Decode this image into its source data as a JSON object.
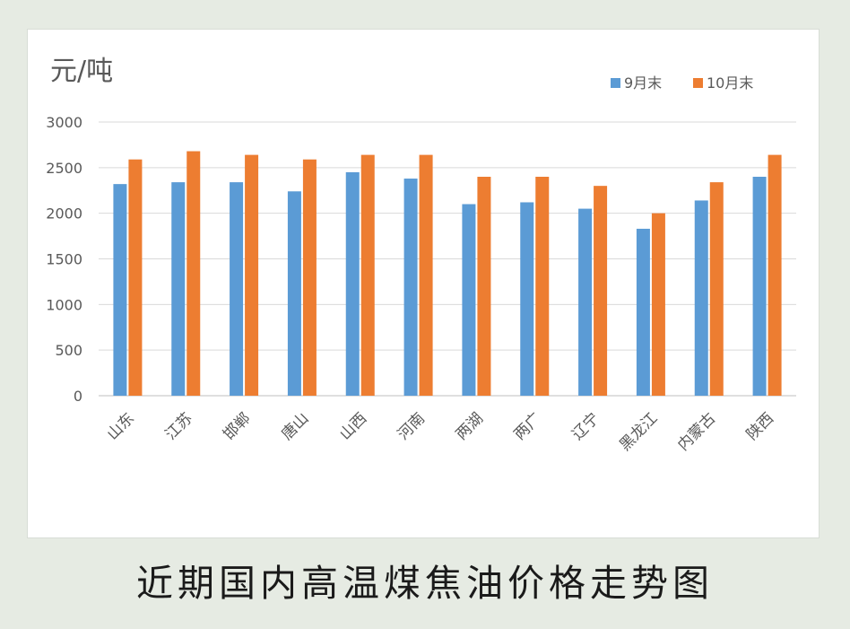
{
  "caption": "近期国内高温煤焦油价格走势图",
  "chart_data": {
    "type": "bar",
    "title": "",
    "ylabel": "元/吨",
    "xlabel": "",
    "ylim": [
      0,
      3000
    ],
    "yticks": [
      0,
      500,
      1000,
      1500,
      2000,
      2500,
      3000
    ],
    "grid": true,
    "legend_position": "top-right",
    "categories": [
      "山东",
      "江苏",
      "邯郸",
      "唐山",
      "山西",
      "河南",
      "两湖",
      "两广",
      "辽宁",
      "黑龙江",
      "内蒙古",
      "陕西"
    ],
    "series": [
      {
        "name": "9月末",
        "color": "#5b9bd5",
        "values": [
          2320,
          2340,
          2340,
          2240,
          2450,
          2380,
          2100,
          2120,
          2050,
          1830,
          2140,
          2400
        ]
      },
      {
        "name": "10月末",
        "color": "#ed7d31",
        "values": [
          2590,
          2680,
          2640,
          2590,
          2640,
          2640,
          2400,
          2400,
          2300,
          2000,
          2340,
          2640
        ]
      }
    ]
  }
}
